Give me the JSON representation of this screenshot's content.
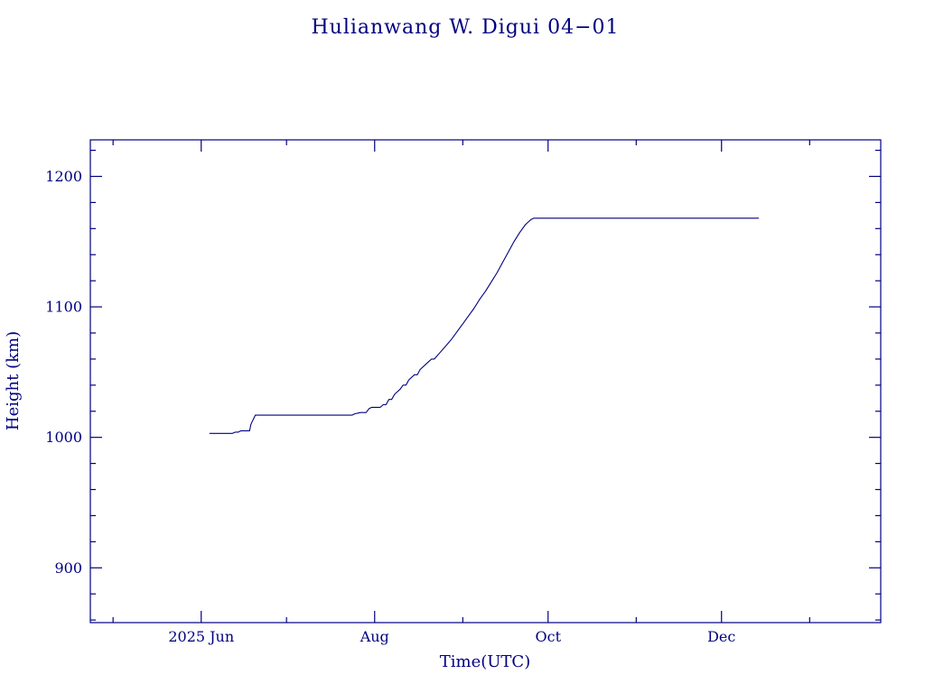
{
  "chart_data": {
    "type": "line",
    "title": "Hulianwang W. Digui 04−01",
    "xlabel": "Time(UTC)",
    "ylabel": "Height (km)",
    "line_color": "#000080",
    "axis_color": "#000080",
    "background_color": "#ffffff",
    "x_unit": "days since 2025-06-01",
    "xlim": [
      -39,
      239
    ],
    "ylim": [
      858,
      1228
    ],
    "yticks": [
      {
        "value": 900,
        "label": "900"
      },
      {
        "value": 1000,
        "label": "1000"
      },
      {
        "value": 1100,
        "label": "1100"
      },
      {
        "value": 1200,
        "label": "1200"
      }
    ],
    "y_minor_step": 20,
    "xticks": [
      {
        "day": 0,
        "label": "2025 Jun"
      },
      {
        "day": 61,
        "label": "Aug"
      },
      {
        "day": 122,
        "label": "Oct"
      },
      {
        "day": 183,
        "label": "Dec"
      }
    ],
    "x_minor_days": [
      -31,
      30,
      92,
      153,
      214
    ],
    "grid": false,
    "legend": "none",
    "points": [
      [
        3,
        1003
      ],
      [
        11,
        1003
      ],
      [
        12,
        1004
      ],
      [
        13,
        1004
      ],
      [
        14,
        1005
      ],
      [
        17,
        1005
      ],
      [
        17.5,
        1010
      ],
      [
        19,
        1017
      ],
      [
        53,
        1017
      ],
      [
        54,
        1018
      ],
      [
        56,
        1019
      ],
      [
        58,
        1019
      ],
      [
        59,
        1022
      ],
      [
        60,
        1023
      ],
      [
        63,
        1023
      ],
      [
        64,
        1025
      ],
      [
        65,
        1025
      ],
      [
        66,
        1029
      ],
      [
        67,
        1029
      ],
      [
        68,
        1033
      ],
      [
        70,
        1037
      ],
      [
        71,
        1040
      ],
      [
        72,
        1040
      ],
      [
        73,
        1044
      ],
      [
        75,
        1048
      ],
      [
        76,
        1048
      ],
      [
        77,
        1052
      ],
      [
        79,
        1056
      ],
      [
        81,
        1060
      ],
      [
        82,
        1060
      ],
      [
        84,
        1065
      ],
      [
        86,
        1070
      ],
      [
        88,
        1075
      ],
      [
        90,
        1081
      ],
      [
        92,
        1087
      ],
      [
        94,
        1093
      ],
      [
        96,
        1099
      ],
      [
        98,
        1106
      ],
      [
        100,
        1112
      ],
      [
        102,
        1119
      ],
      [
        104,
        1126
      ],
      [
        106,
        1134
      ],
      [
        108,
        1142
      ],
      [
        110,
        1150
      ],
      [
        112,
        1157
      ],
      [
        114,
        1163
      ],
      [
        115,
        1165
      ],
      [
        116,
        1167
      ],
      [
        117,
        1168
      ],
      [
        196,
        1168
      ]
    ]
  }
}
